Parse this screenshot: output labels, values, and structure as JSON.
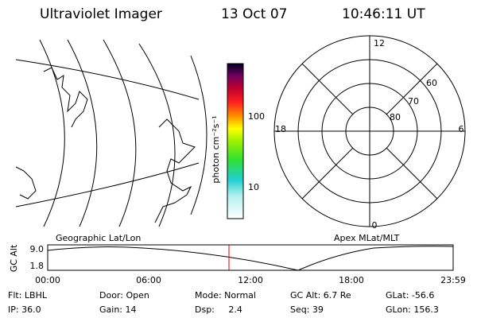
{
  "header": {
    "title": "Ultraviolet Imager",
    "date": "13 Oct 07",
    "time": "10:46:11 UT"
  },
  "colorbar": {
    "unit": "photon cm⁻²s⁻¹",
    "ticks": [
      "100",
      "10"
    ]
  },
  "polar": {
    "labels": {
      "top": "12",
      "right": "6",
      "bottom": "0",
      "left": "18"
    },
    "rings": [
      "60",
      "70",
      "80"
    ]
  },
  "panels": {
    "left": "Geographic Lat/Lon",
    "right": "Apex MLat/MLT"
  },
  "orbit": {
    "axis_label": "GC Alt",
    "yticks": [
      "9.0",
      "1.8"
    ],
    "xticks": [
      "00:00",
      "06:00",
      "12:00",
      "18:00",
      "23:59"
    ]
  },
  "info": {
    "rows": [
      [
        "Flt: LBHL",
        "Door: Open",
        "Mode: Normal",
        "GC Alt: 6.7 Re",
        "GLat: -56.6"
      ],
      [
        "IP: 36.0",
        "Gain: 14",
        "Dsp:     2.4",
        "Seq: 39",
        "GLon: 156.3"
      ]
    ]
  }
}
